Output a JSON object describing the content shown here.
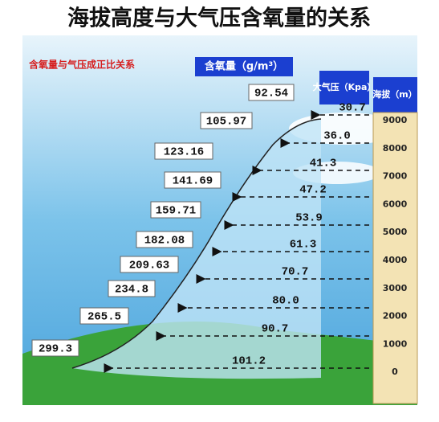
{
  "title": "海拔高度与大气压含氧量的关系",
  "subtitle": "含氧量与气压成正比关系",
  "oxygen_header": "含氧量（g/m³）",
  "pressure_header": "大气压（Kpa）",
  "altitude_header": "海拔（m）",
  "altitude_ticks": [
    "9000",
    "8000",
    "7000",
    "6000",
    "5000",
    "4000",
    "3000",
    "2000",
    "1000",
    "0"
  ],
  "pressure": [
    "30.7",
    "36.0",
    "41.3",
    "47.2",
    "53.9",
    "61.3",
    "70.7",
    "80.0",
    "90.7",
    "101.2"
  ],
  "oxygen": [
    "92.54",
    "105.97",
    "123.16",
    "141.69",
    "159.71",
    "182.08",
    "209.63",
    "234.8",
    "265.5",
    "299.3"
  ]
}
